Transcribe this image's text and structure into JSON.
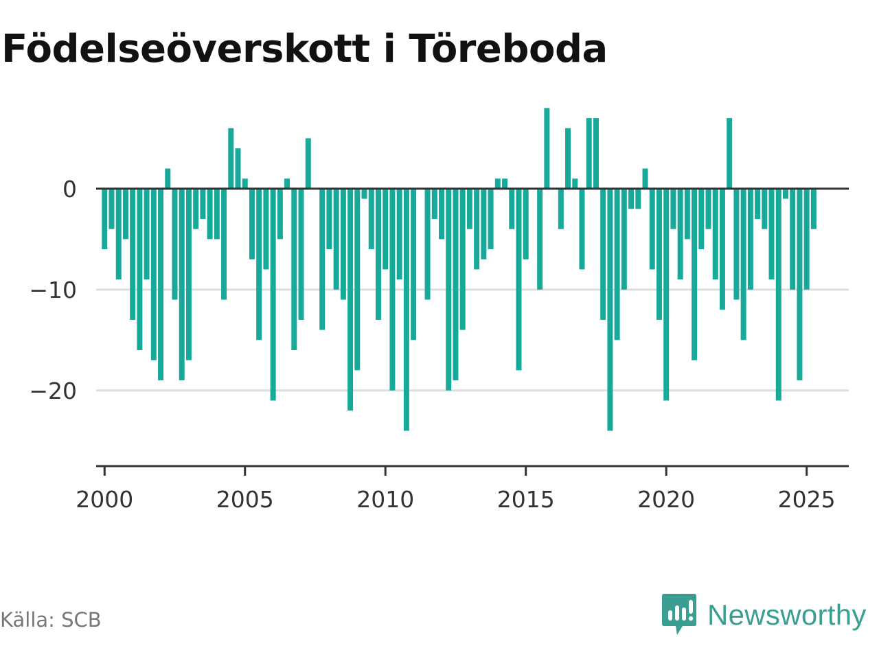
{
  "title": "Födelseöverskott i Töreboda",
  "source": "Källa: SCB",
  "brand": "Newsworthy",
  "colors": {
    "bar": "#17a99a",
    "brand": "#3a9e92",
    "zero_line": "#333333",
    "grid": "#dddddd"
  },
  "icons": {
    "brand_logo": "newsworthy-logo-icon"
  },
  "chart_data": {
    "type": "bar",
    "title": "Födelseöverskott i Töreboda",
    "xlabel": "",
    "ylabel": "",
    "frequency": "quarterly",
    "x_start": "2000Q1",
    "xlim": [
      1999.7,
      2026.5
    ],
    "ylim": [
      -27.5,
      8.5
    ],
    "x_ticks": [
      2000,
      2005,
      2010,
      2015,
      2020,
      2025
    ],
    "x_tick_labels": [
      "2000",
      "2005",
      "2010",
      "2015",
      "2020",
      "2025"
    ],
    "y_ticks": [
      -20,
      -10,
      0
    ],
    "y_tick_labels": [
      "−20",
      "−10",
      "0"
    ],
    "grid": true,
    "legend": "none",
    "values": [
      -6,
      -4,
      -9,
      -5,
      -13,
      -16,
      -9,
      -17,
      -19,
      2,
      -11,
      -19,
      -17,
      -4,
      -3,
      -5,
      -5,
      -11,
      6,
      4,
      1,
      -7,
      -15,
      -8,
      -21,
      -5,
      1,
      -16,
      -13,
      5,
      0,
      -14,
      -6,
      -10,
      -11,
      -22,
      -18,
      -1,
      -6,
      -13,
      -8,
      -20,
      -9,
      -24,
      -15,
      0,
      -11,
      -3,
      -5,
      -20,
      -19,
      -14,
      -4,
      -8,
      -7,
      -6,
      1,
      1,
      -4,
      -18,
      -7,
      0,
      -10,
      8,
      0,
      -4,
      6,
      1,
      -8,
      7,
      7,
      -13,
      -24,
      -15,
      -10,
      -2,
      -2,
      2,
      -8,
      -13,
      -21,
      -4,
      -9,
      -5,
      -17,
      -6,
      -4,
      -9,
      -12,
      7,
      -11,
      -15,
      -10,
      -3,
      -4,
      -9,
      -21,
      -1,
      -10,
      -19,
      -10,
      -4
    ]
  }
}
